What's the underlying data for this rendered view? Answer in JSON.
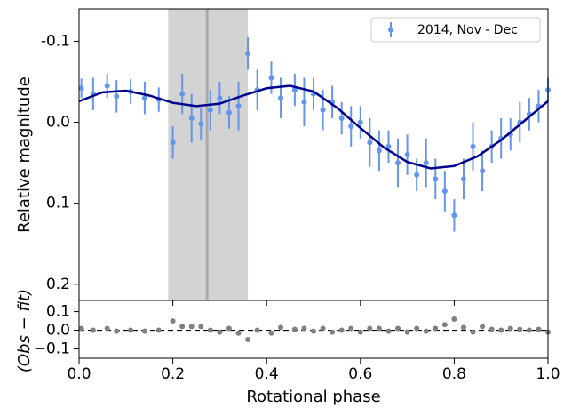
{
  "chart_data": [
    {
      "type": "errorbar",
      "ylabel": "Relative magnitude",
      "xlim": [
        0,
        1
      ],
      "xticks": [
        0,
        0.2,
        0.4,
        0.6,
        0.8,
        1
      ],
      "ylim": [
        0.22,
        -0.14
      ],
      "yticks": [
        {
          "value": -0.1,
          "label": "-0.1"
        },
        {
          "value": 0,
          "label": "0.0"
        },
        0.1,
        0.2
      ],
      "legend": "upper right",
      "span": [
        0.19,
        0.36
      ],
      "span_color": "#d3d3d3",
      "vline": 0.273,
      "vline_color": "#a9a9a9",
      "series": [
        {
          "name": "2014, Nov - Dec",
          "color": "#6495ed",
          "x": [
            0.005,
            0.03,
            0.06,
            0.08,
            0.11,
            0.14,
            0.17,
            0.2,
            0.22,
            0.24,
            0.26,
            0.28,
            0.3,
            0.32,
            0.34,
            0.36,
            0.38,
            0.41,
            0.43,
            0.46,
            0.48,
            0.5,
            0.52,
            0.54,
            0.56,
            0.58,
            0.6,
            0.62,
            0.64,
            0.66,
            0.68,
            0.7,
            0.72,
            0.74,
            0.76,
            0.78,
            0.8,
            0.82,
            0.84,
            0.86,
            0.88,
            0.9,
            0.92,
            0.94,
            0.96,
            0.98,
            1.0
          ],
          "values": [
            -0.042,
            -0.035,
            -0.045,
            -0.032,
            -0.038,
            -0.03,
            -0.028,
            0.025,
            -0.035,
            -0.005,
            0.002,
            -0.015,
            -0.03,
            -0.012,
            -0.02,
            -0.085,
            -0.04,
            -0.055,
            -0.03,
            -0.04,
            -0.025,
            -0.035,
            -0.015,
            -0.025,
            -0.005,
            0.005,
            0.0,
            0.025,
            0.035,
            0.03,
            0.05,
            0.04,
            0.065,
            0.05,
            0.07,
            0.085,
            0.115,
            0.07,
            0.03,
            0.06,
            0.03,
            0.02,
            0.015,
            0.0,
            -0.01,
            -0.02,
            -0.04
          ],
          "errors": [
            0.012,
            0.02,
            0.015,
            0.02,
            0.015,
            0.02,
            0.015,
            0.02,
            0.025,
            0.03,
            0.02,
            0.025,
            0.02,
            0.02,
            0.03,
            0.02,
            0.025,
            0.02,
            0.025,
            0.02,
            0.03,
            0.02,
            0.025,
            0.02,
            0.02,
            0.025,
            0.02,
            0.03,
            0.025,
            0.02,
            0.03,
            0.025,
            0.02,
            0.03,
            0.025,
            0.025,
            0.02,
            0.025,
            0.03,
            0.025,
            0.02,
            0.025,
            0.02,
            0.025,
            0.02,
            0.02,
            0.015
          ]
        }
      ],
      "fit": {
        "color": "#00008b",
        "x": [
          0,
          0.05,
          0.1,
          0.15,
          0.2,
          0.25,
          0.3,
          0.35,
          0.4,
          0.45,
          0.5,
          0.55,
          0.6,
          0.65,
          0.7,
          0.75,
          0.8,
          0.85,
          0.9,
          0.95,
          1.0
        ],
        "values": [
          -0.026,
          -0.037,
          -0.039,
          -0.033,
          -0.024,
          -0.02,
          -0.023,
          -0.033,
          -0.042,
          -0.045,
          -0.038,
          -0.018,
          0.007,
          0.031,
          0.049,
          0.057,
          0.054,
          0.042,
          0.022,
          -0.002,
          -0.026
        ]
      }
    },
    {
      "type": "scatter",
      "ylabel": "(Obs − fit)",
      "xlabel": "Rotational phase",
      "xlim": [
        0,
        1
      ],
      "xticks": [
        {
          "value": 0,
          "label": "0.0"
        },
        0.2,
        0.4,
        0.6,
        0.8,
        {
          "value": 1,
          "label": "1.0"
        }
      ],
      "ylim": [
        -0.15,
        0.16
      ],
      "yticks": [
        {
          "value": -0.1,
          "label": "−0.1"
        },
        {
          "value": 0,
          "label": "0.0"
        },
        0.1
      ],
      "color": "#808080",
      "zero_line": 0,
      "x": [
        0.005,
        0.03,
        0.06,
        0.08,
        0.11,
        0.14,
        0.17,
        0.2,
        0.22,
        0.24,
        0.26,
        0.28,
        0.3,
        0.32,
        0.34,
        0.36,
        0.38,
        0.41,
        0.43,
        0.46,
        0.48,
        0.5,
        0.52,
        0.54,
        0.56,
        0.58,
        0.6,
        0.62,
        0.64,
        0.66,
        0.68,
        0.7,
        0.72,
        0.74,
        0.76,
        0.78,
        0.8,
        0.82,
        0.84,
        0.86,
        0.88,
        0.9,
        0.92,
        0.94,
        0.96,
        0.98,
        1.0
      ],
      "values": [
        0.01,
        0.0,
        0.01,
        -0.005,
        0.0,
        -0.005,
        0.0,
        0.05,
        0.02,
        0.02,
        0.02,
        0.0,
        -0.01,
        0.01,
        -0.015,
        -0.05,
        0.0,
        -0.015,
        0.015,
        0.005,
        0.01,
        -0.005,
        0.01,
        -0.01,
        0.0,
        0.01,
        -0.01,
        0.01,
        0.01,
        -0.005,
        0.01,
        -0.01,
        0.01,
        -0.005,
        0.01,
        0.03,
        0.06,
        0.015,
        -0.01,
        0.02,
        0.005,
        0.0,
        0.01,
        0.005,
        0.0,
        0.005,
        -0.01
      ]
    }
  ]
}
